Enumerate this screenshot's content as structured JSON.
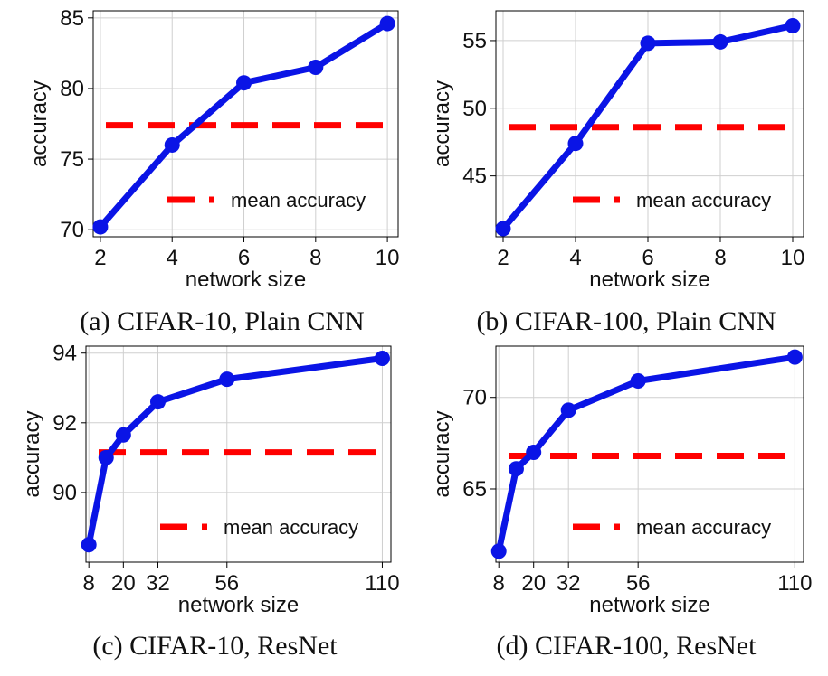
{
  "chart_data": [
    {
      "type": "line",
      "caption": "(a) CIFAR-10, Plain CNN",
      "xlabel": "network size",
      "ylabel": "accuracy",
      "x": [
        2,
        4,
        6,
        8,
        10
      ],
      "xticks": [
        2,
        4,
        6,
        8,
        10
      ],
      "xlim": [
        1.8,
        10.3
      ],
      "yticks": [
        70,
        75,
        80,
        85
      ],
      "ylim": [
        69.5,
        85.5
      ],
      "series": [
        {
          "values": [
            70.2,
            76.0,
            80.4,
            81.5,
            84.6
          ],
          "color": "#0a14e6"
        }
      ],
      "mean": {
        "label": "mean accuracy",
        "value": 77.4,
        "color": "#ff0000"
      },
      "legend": "bottom-right",
      "grid": true
    },
    {
      "type": "line",
      "caption": "(b) CIFAR-100, Plain CNN",
      "xlabel": "network size",
      "ylabel": "accuracy",
      "x": [
        2,
        4,
        6,
        8,
        10
      ],
      "xticks": [
        2,
        4,
        6,
        8,
        10
      ],
      "xlim": [
        1.8,
        10.3
      ],
      "yticks": [
        45,
        50,
        55
      ],
      "ylim": [
        40.5,
        57.2
      ],
      "series": [
        {
          "values": [
            41.1,
            47.4,
            54.8,
            54.9,
            56.1
          ],
          "color": "#0a14e6"
        }
      ],
      "mean": {
        "label": "mean accuracy",
        "value": 48.6,
        "color": "#ff0000"
      },
      "legend": "bottom-right",
      "grid": true
    },
    {
      "type": "line",
      "caption": "(c) CIFAR-10, ResNet",
      "xlabel": "network size",
      "ylabel": "accuracy",
      "x": [
        8,
        14,
        20,
        32,
        56,
        110
      ],
      "xticks": [
        8,
        20,
        32,
        56,
        110
      ],
      "xlim": [
        7,
        113
      ],
      "yticks": [
        90,
        92,
        94
      ],
      "ylim": [
        88.0,
        94.2
      ],
      "series": [
        {
          "values": [
            88.5,
            91.0,
            91.65,
            92.6,
            93.25,
            93.85
          ],
          "color": "#0a14e6"
        }
      ],
      "mean": {
        "label": "mean accuracy",
        "value": 91.15,
        "color": "#ff0000"
      },
      "legend": "bottom-right",
      "grid": true
    },
    {
      "type": "line",
      "caption": "(d) CIFAR-100, ResNet",
      "xlabel": "network size",
      "ylabel": "accuracy",
      "x": [
        8,
        14,
        20,
        32,
        56,
        110
      ],
      "xticks": [
        8,
        20,
        32,
        56,
        110
      ],
      "xlim": [
        7,
        113
      ],
      "yticks": [
        65,
        70
      ],
      "ylim": [
        61,
        72.8
      ],
      "series": [
        {
          "values": [
            61.6,
            66.1,
            67.0,
            69.3,
            70.9,
            72.2
          ],
          "color": "#0a14e6"
        }
      ],
      "mean": {
        "label": "mean accuracy",
        "value": 66.8,
        "color": "#ff0000"
      },
      "legend": "bottom-right",
      "grid": true
    }
  ]
}
